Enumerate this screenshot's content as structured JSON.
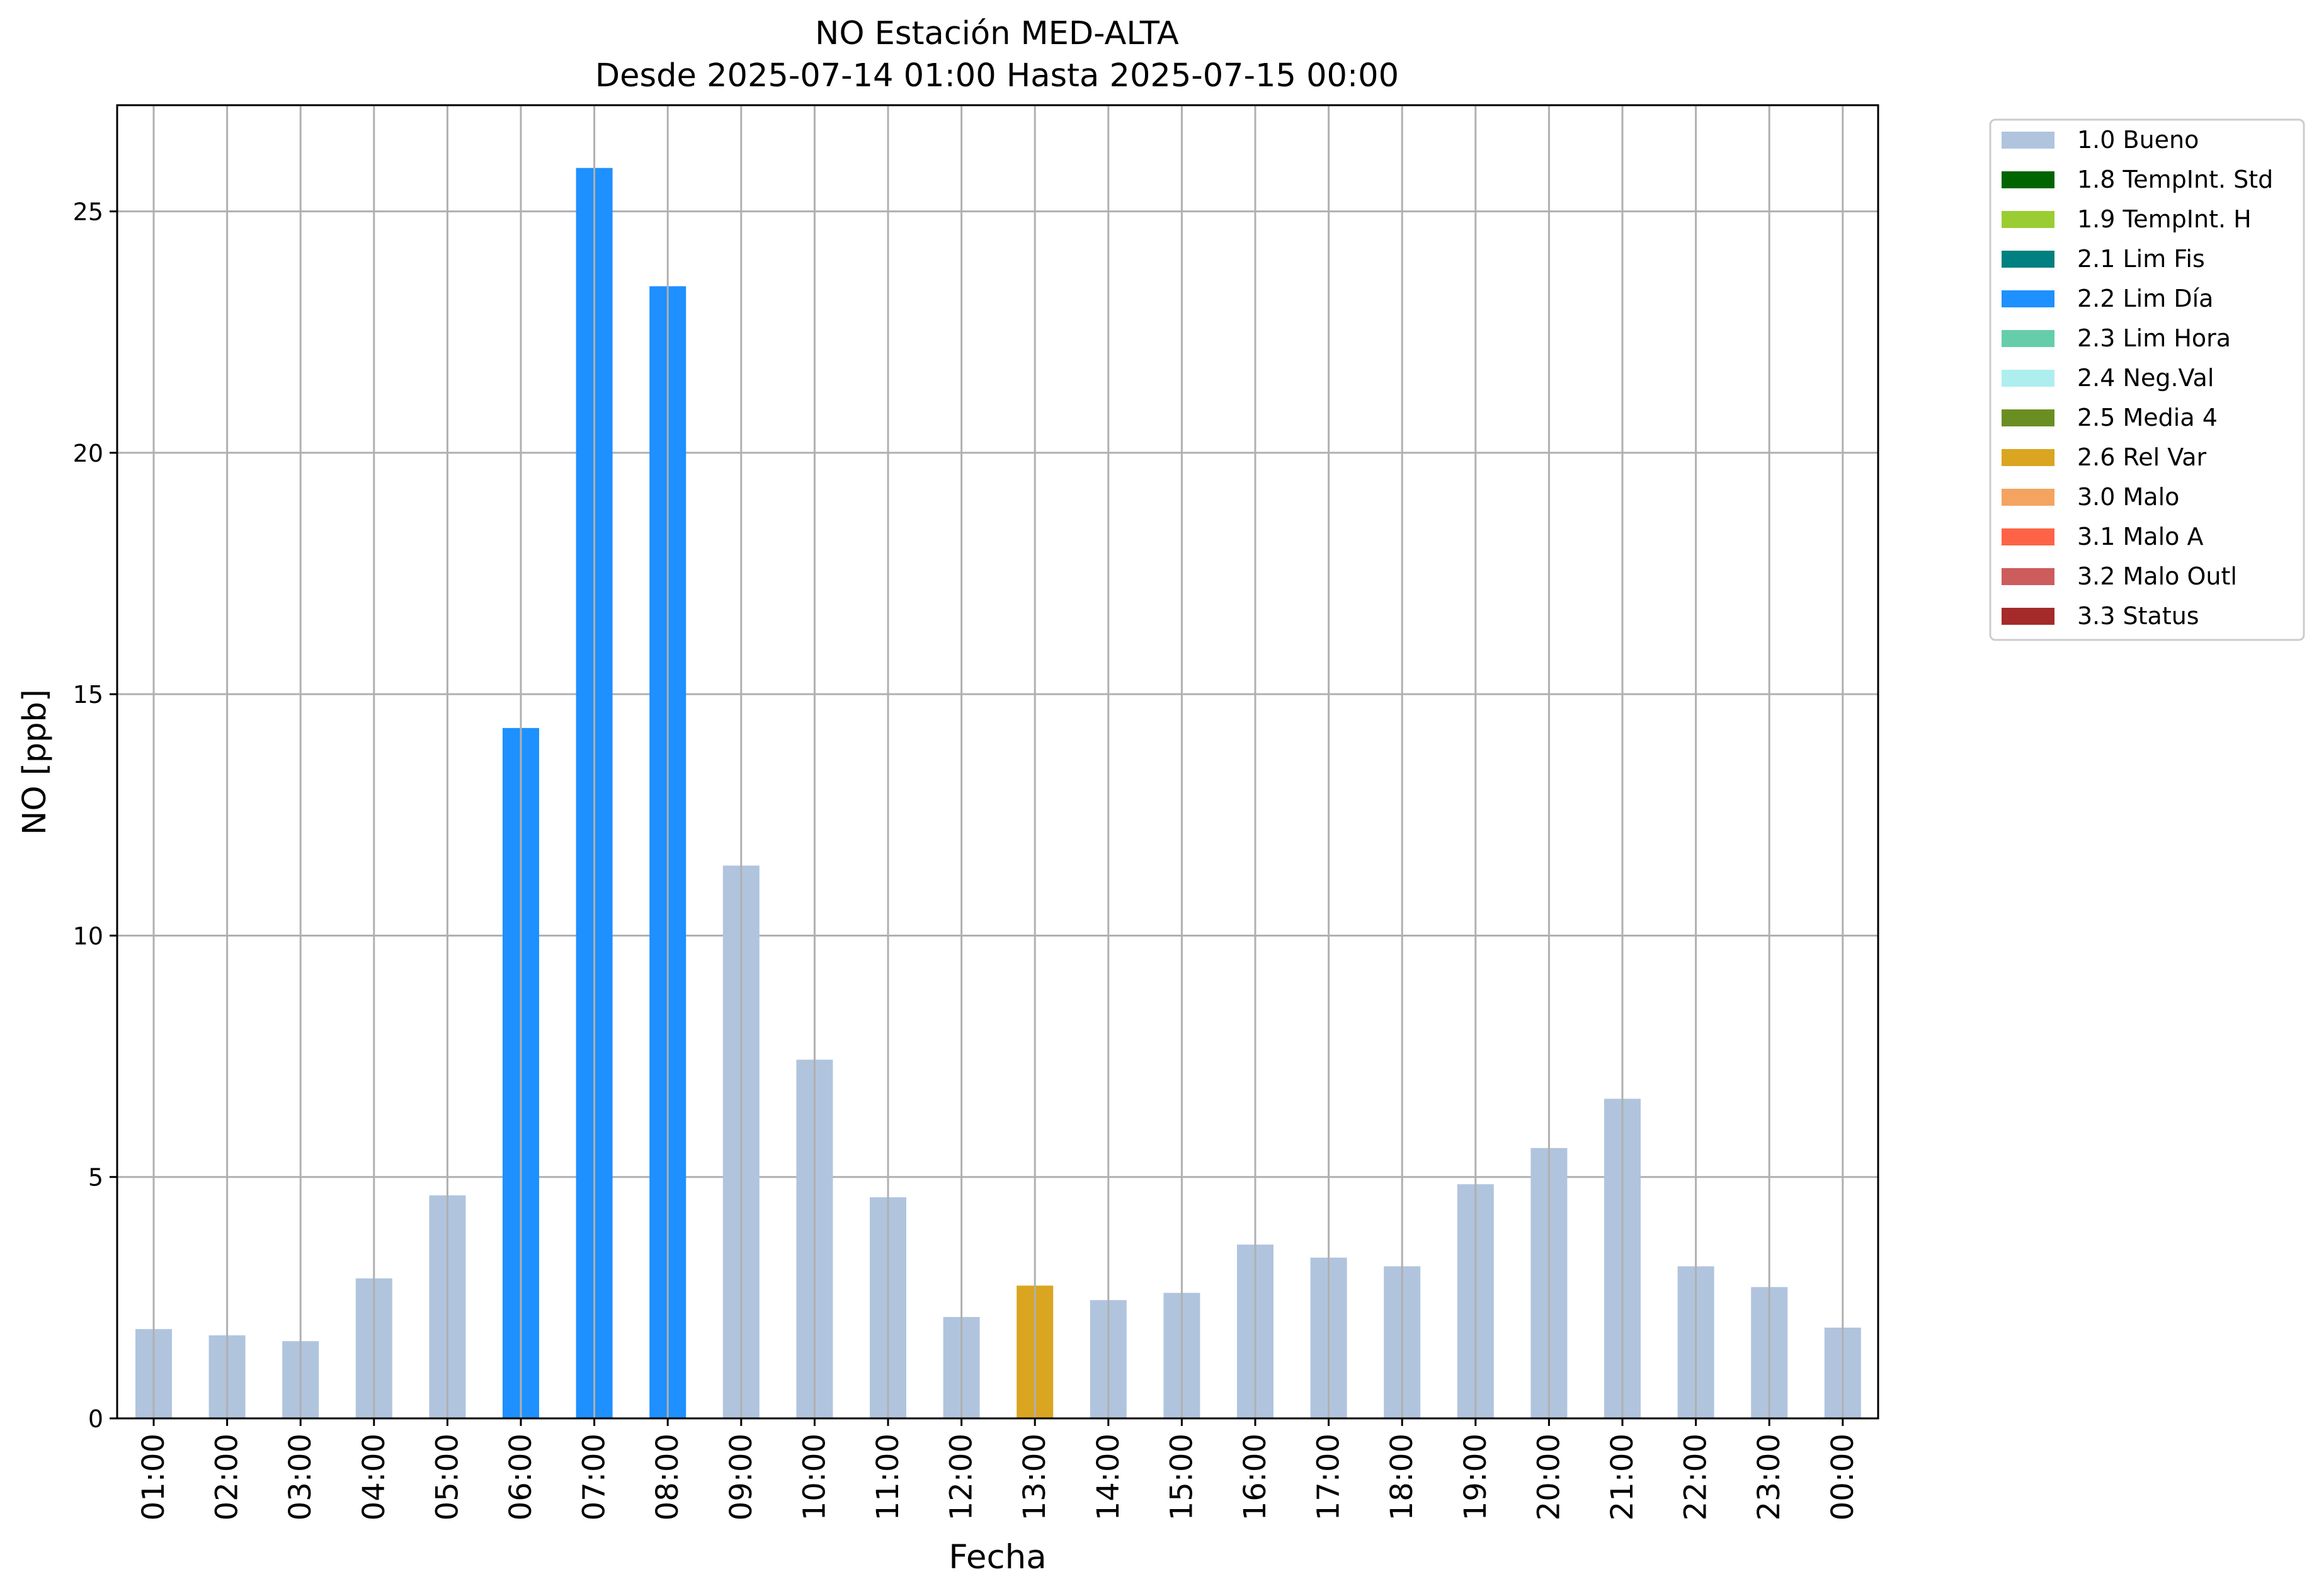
{
  "chart_data": {
    "type": "bar",
    "title": [
      "NO Estación MED-ALTA",
      "Desde 2025-07-14 01:00 Hasta 2025-07-15 00:00"
    ],
    "xlabel": "Fecha",
    "ylabel": "NO [ppb]",
    "ylim": [
      0,
      27.2
    ],
    "yticks": [
      0,
      5,
      10,
      15,
      20,
      25
    ],
    "grid": true,
    "legend_position": "outside-top-right",
    "categories": [
      "01:00",
      "02:00",
      "03:00",
      "04:00",
      "05:00",
      "06:00",
      "07:00",
      "08:00",
      "09:00",
      "10:00",
      "11:00",
      "12:00",
      "13:00",
      "14:00",
      "15:00",
      "16:00",
      "17:00",
      "18:00",
      "19:00",
      "20:00",
      "21:00",
      "22:00",
      "23:00",
      "00:00"
    ],
    "values": [
      1.85,
      1.72,
      1.6,
      2.9,
      4.62,
      14.3,
      25.9,
      23.45,
      11.45,
      7.43,
      4.58,
      2.1,
      2.75,
      2.45,
      2.6,
      3.6,
      3.33,
      3.15,
      4.85,
      5.6,
      6.62,
      3.15,
      2.72,
      1.88
    ],
    "quality": [
      "1.0",
      "1.0",
      "1.0",
      "1.0",
      "1.0",
      "2.2",
      "2.2",
      "2.2",
      "1.0",
      "1.0",
      "1.0",
      "1.0",
      "2.6",
      "1.0",
      "1.0",
      "1.0",
      "1.0",
      "1.0",
      "1.0",
      "1.0",
      "1.0",
      "1.0",
      "1.0",
      "1.0"
    ],
    "legend": [
      {
        "code": "1.0",
        "label": "1.0 Bueno",
        "color": "#b0c4de"
      },
      {
        "code": "1.8",
        "label": "1.8 TempInt. Std",
        "color": "#006400"
      },
      {
        "code": "1.9",
        "label": "1.9 TempInt. H",
        "color": "#9acd32"
      },
      {
        "code": "2.1",
        "label": "2.1 Lim Fis",
        "color": "#008080"
      },
      {
        "code": "2.2",
        "label": "2.2 Lim Día",
        "color": "#1e90ff"
      },
      {
        "code": "2.3",
        "label": "2.3 Lim Hora",
        "color": "#66cdaa"
      },
      {
        "code": "2.4",
        "label": "2.4 Neg.Val",
        "color": "#afeeee"
      },
      {
        "code": "2.5",
        "label": "2.5 Media 4",
        "color": "#6b8e23"
      },
      {
        "code": "2.6",
        "label": "2.6 Rel Var",
        "color": "#daa520"
      },
      {
        "code": "3.0",
        "label": "3.0 Malo",
        "color": "#f4a460"
      },
      {
        "code": "3.1",
        "label": "3.1 Malo A",
        "color": "#ff6347"
      },
      {
        "code": "3.2",
        "label": "3.2 Malo Outl",
        "color": "#cd5c5c"
      },
      {
        "code": "3.3",
        "label": "3.3 Status",
        "color": "#a52a2a"
      }
    ]
  }
}
